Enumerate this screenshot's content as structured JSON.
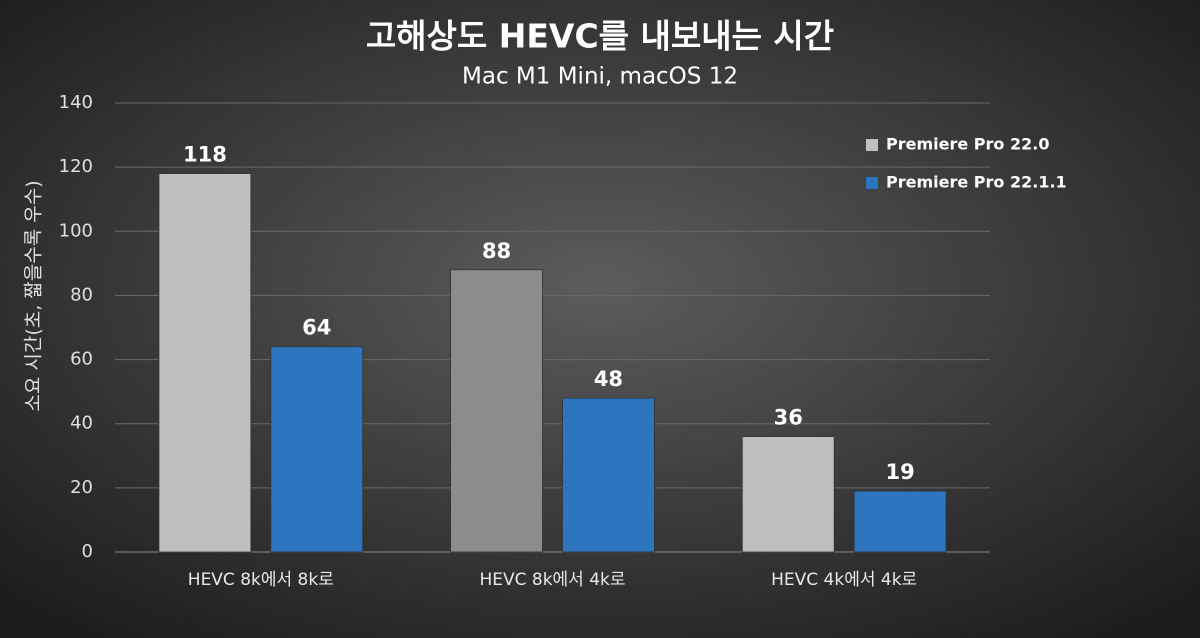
{
  "chart_data": {
    "type": "bar",
    "title": "고해상도 HEVC를 내보내는 시간",
    "subtitle": "Mac M1 Mini, macOS 12",
    "y_label": "소요 시간(초, 짧을수록 우수)",
    "categories": [
      "HEVC 8k에서 8k로",
      "HEVC 8k에서 4k로",
      "HEVC 4k에서 4k로"
    ],
    "series": [
      {
        "name": "Premiere Pro 22.0",
        "color": "#bfbfbf",
        "colors": [
          "#bfbfbf",
          "#8c8c8c",
          "#bfbfbf"
        ],
        "values": [
          118,
          88,
          36
        ]
      },
      {
        "name": "Premiere Pro 22.1.1",
        "color": "#2e75c0",
        "values": [
          64,
          48,
          19
        ]
      }
    ],
    "ylim": [
      0,
      140
    ],
    "yticks": [
      0,
      20,
      40,
      60,
      80,
      100,
      120,
      140
    ],
    "grid": true,
    "legend": "upper right"
  }
}
